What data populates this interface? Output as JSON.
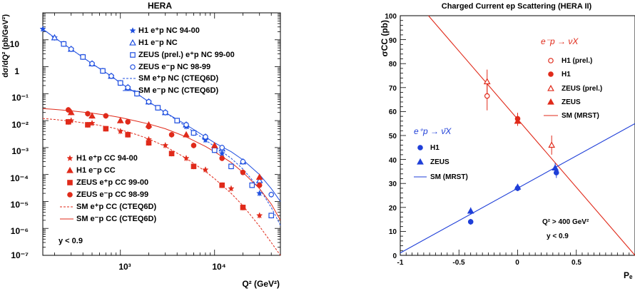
{
  "chart_data": [
    {
      "type": "scatter",
      "title": "HERA",
      "xlabel": "Q² (GeV²)",
      "ylabel": "dσ/dQ² (pb/GeV²)",
      "x_scale": "log",
      "y_scale": "log",
      "xlim": [
        150,
        50000
      ],
      "ylim": [
        1e-07,
        100
      ],
      "x_ticks": [
        "10³",
        "10⁴"
      ],
      "y_ticks": [
        "10",
        "1",
        "10⁻¹",
        "10⁻²",
        "10⁻³",
        "10⁻⁴",
        "10⁻⁵",
        "10⁻⁶",
        "10⁻⁷"
      ],
      "annotation": "y < 0.9",
      "legend_nc": [
        "H1 e⁺p NC 94-00",
        "H1 e⁻p NC",
        "ZEUS (prel.) e⁺p NC 99-00",
        "ZEUS e⁻p NC 98-99",
        "SM e⁺p NC (CTEQ6D)",
        "SM e⁻p NC (CTEQ6D)"
      ],
      "legend_cc": [
        "H1 e⁺p CC 94-00",
        "H1 e⁻p CC",
        "ZEUS e⁺p CC 99-00",
        "ZEUS e⁻p CC 98-99",
        "SM e⁺p CC (CTEQ6D)",
        "SM e⁻p CC (CTEQ6D)"
      ],
      "colors": {
        "nc": "#1f4fe0",
        "cc": "#e02a1a"
      },
      "series": [
        {
          "name": "H1 e⁺p NC 94-00",
          "group": "nc",
          "marker": "star",
          "x": [
            150,
            200,
            250,
            300,
            400,
            500,
            650,
            800,
            1000,
            1200,
            1500,
            2000,
            3000,
            5000,
            8000,
            12000,
            20000,
            30000
          ],
          "y": [
            25,
            12,
            7,
            4.5,
            2.3,
            1.3,
            0.7,
            0.45,
            0.25,
            0.17,
            0.1,
            0.05,
            0.02,
            0.006,
            0.0019,
            0.0006,
            0.00012,
            2e-05
          ]
        },
        {
          "name": "H1 e⁻p NC",
          "group": "nc",
          "marker": "triangle-open",
          "x": [
            200,
            300,
            500,
            800,
            1200,
            2000,
            3000,
            5000,
            8000,
            12000,
            20000,
            30000
          ],
          "y": [
            12,
            4.5,
            1.3,
            0.45,
            0.17,
            0.05,
            0.02,
            0.007,
            0.0025,
            0.0009,
            0.0003,
            6e-05
          ]
        },
        {
          "name": "ZEUS (prel.) e⁺p NC 99-00",
          "group": "nc",
          "marker": "square-open",
          "x": [
            250,
            400,
            650,
            1000,
            1500,
            2500,
            4000,
            6000,
            10000,
            15000,
            25000,
            40000
          ],
          "y": [
            7,
            2.3,
            0.7,
            0.25,
            0.1,
            0.03,
            0.01,
            0.0035,
            0.0008,
            0.0002,
            4e-05,
            3e-06
          ]
        },
        {
          "name": "ZEUS e⁻p NC 98-99",
          "group": "nc",
          "marker": "circle-open",
          "x": [
            300,
            500,
            800,
            1200,
            2000,
            3000,
            5000,
            8000,
            12000,
            20000,
            40000
          ],
          "y": [
            4.5,
            1.3,
            0.45,
            0.17,
            0.05,
            0.02,
            0.007,
            0.0025,
            0.001,
            0.0003,
            1.8e-05
          ]
        },
        {
          "name": "H1 e⁺p CC 94-00",
          "group": "cc",
          "marker": "star",
          "x": [
            300,
            500,
            1000,
            2000,
            3000,
            5000,
            8000,
            15000,
            30000
          ],
          "y": [
            0.01,
            0.008,
            0.004,
            0.002,
            0.0012,
            0.0004,
            0.00015,
            3e-05,
            3e-06
          ]
        },
        {
          "name": "H1 e⁻p CC",
          "group": "cc",
          "marker": "triangle",
          "x": [
            300,
            500,
            1000,
            2000,
            5000,
            10000,
            30000
          ],
          "y": [
            0.02,
            0.015,
            0.01,
            0.007,
            0.003,
            0.0012,
            8e-05
          ]
        },
        {
          "name": "ZEUS e⁺p CC 99-00",
          "group": "cc",
          "marker": "square",
          "x": [
            280,
            450,
            700,
            1200,
            2000,
            3500,
            6000,
            12000,
            20000
          ],
          "y": [
            0.009,
            0.007,
            0.005,
            0.003,
            0.0015,
            0.0006,
            0.0002,
            4e-05,
            6e-06
          ]
        },
        {
          "name": "ZEUS e⁻p CC 98-99",
          "group": "cc",
          "marker": "circle",
          "x": [
            280,
            450,
            700,
            1200,
            2000,
            3500,
            6000,
            12000,
            20000,
            30000
          ],
          "y": [
            0.025,
            0.018,
            0.015,
            0.009,
            0.006,
            0.003,
            0.0012,
            0.0004,
            0.00012,
            4e-05
          ]
        }
      ],
      "curves": [
        {
          "name": "SM e⁺p NC (CTEQ6D)",
          "group": "nc",
          "style": "dashed",
          "x": [
            150,
            200,
            300,
            500,
            800,
            1000,
            1500,
            2000,
            3000,
            5000,
            8000,
            10000,
            15000,
            20000,
            30000,
            40000,
            50000
          ],
          "y": [
            25,
            12,
            4.5,
            1.3,
            0.45,
            0.25,
            0.1,
            0.05,
            0.02,
            0.006,
            0.0019,
            0.0011,
            0.0004,
            0.00016,
            3e-05,
            6e-06,
            1.3e-06
          ]
        },
        {
          "name": "SM e⁻p NC (CTEQ6D)",
          "group": "nc",
          "style": "solid",
          "x": [
            150,
            200,
            300,
            500,
            800,
            1000,
            1500,
            2000,
            3000,
            5000,
            8000,
            10000,
            15000,
            20000,
            30000,
            40000,
            50000
          ],
          "y": [
            25,
            12,
            4.5,
            1.3,
            0.45,
            0.25,
            0.1,
            0.05,
            0.02,
            0.007,
            0.0025,
            0.0015,
            0.0007,
            0.00035,
            0.0001,
            3e-05,
            1e-05
          ]
        },
        {
          "name": "SM e⁺p CC (CTEQ6D)",
          "group": "cc",
          "style": "dashed",
          "x": [
            150,
            200,
            300,
            500,
            800,
            1000,
            1500,
            2000,
            3000,
            5000,
            8000,
            10000,
            15000,
            20000,
            30000,
            40000,
            50000
          ],
          "y": [
            0.012,
            0.011,
            0.0095,
            0.0075,
            0.0055,
            0.0046,
            0.003,
            0.0021,
            0.0011,
            0.0004,
            0.00013,
            7e-05,
            2e-05,
            7e-06,
            1.2e-06,
            3e-07,
            1e-07
          ]
        },
        {
          "name": "SM e⁻p CC (CTEQ6D)",
          "group": "cc",
          "style": "solid",
          "x": [
            150,
            200,
            300,
            500,
            800,
            1000,
            1500,
            2000,
            3000,
            5000,
            8000,
            10000,
            15000,
            20000,
            30000,
            40000,
            50000
          ],
          "y": [
            0.028,
            0.026,
            0.023,
            0.019,
            0.015,
            0.013,
            0.0095,
            0.0075,
            0.005,
            0.0025,
            0.0011,
            0.0007,
            0.00028,
            0.00012,
            3e-05,
            8e-06,
            2e-06
          ]
        }
      ]
    },
    {
      "type": "scatter",
      "title": "Charged Current ep Scattering (HERA II)",
      "xlabel": "Pₑ",
      "ylabel": "σCC (pb)",
      "xlim": [
        -1,
        1
      ],
      "ylim": [
        0,
        100
      ],
      "x_ticks": [
        "-1",
        "-0.5",
        "0",
        "0.5"
      ],
      "y_ticks": [
        "0",
        "10",
        "20",
        "30",
        "40",
        "50",
        "60",
        "70",
        "80",
        "90",
        "100"
      ],
      "annotation_q2": "Q² > 400 GeV²",
      "annotation_y": "y < 0.9",
      "legend_eminus_header": "e⁻p → νX",
      "legend_eplus_header": "e⁺p → ν̄X",
      "colors": {
        "eminus": "#e02a1a",
        "eplus": "#1f3fd8"
      },
      "series": [
        {
          "name": "H1 (prel.)",
          "group": "eminus",
          "marker": "circle-open",
          "x": [
            -0.26
          ],
          "y": [
            66.5
          ],
          "err": [
            6
          ]
        },
        {
          "name": "H1",
          "group": "eminus",
          "marker": "circle",
          "x": [
            0.0
          ],
          "y": [
            57
          ],
          "err": [
            2.5
          ]
        },
        {
          "name": "ZEUS (prel.)",
          "group": "eminus",
          "marker": "triangle-open",
          "x": [
            -0.26,
            0.29
          ],
          "y": [
            72.5,
            46
          ],
          "err": [
            5,
            4
          ]
        },
        {
          "name": "ZEUS",
          "group": "eminus",
          "marker": "triangle",
          "x": [
            0.0
          ],
          "y": [
            56
          ],
          "err": [
            2
          ]
        },
        {
          "name": "H1",
          "group": "eplus",
          "marker": "circle",
          "x": [
            -0.4,
            0.0,
            0.33
          ],
          "y": [
            14,
            28,
            34.5
          ],
          "err": [
            1.2,
            1.2,
            2.2
          ]
        },
        {
          "name": "ZEUS",
          "group": "eplus",
          "marker": "triangle",
          "x": [
            -0.4,
            0.0,
            0.32
          ],
          "y": [
            18.5,
            28.5,
            36.5
          ],
          "err": [
            1.5,
            1.2,
            2
          ]
        }
      ],
      "lines": [
        {
          "name": "SM (MRST)",
          "group": "eminus",
          "x": [
            -0.76,
            1.0
          ],
          "y": [
            100,
            0
          ]
        },
        {
          "name": "SM (MRST)",
          "group": "eplus",
          "x": [
            -1.0,
            1.0
          ],
          "y": [
            1,
            55
          ]
        }
      ],
      "legend_eminus": [
        "H1 (prel.)",
        "H1",
        "ZEUS (prel.)",
        "ZEUS",
        "SM (MRST)"
      ],
      "legend_eplus": [
        "H1",
        "ZEUS",
        "SM (MRST)"
      ]
    }
  ]
}
